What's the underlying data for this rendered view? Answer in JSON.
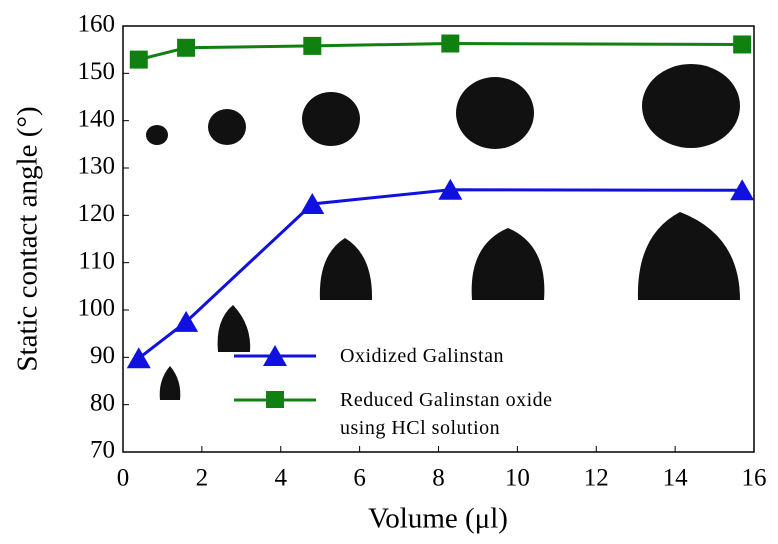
{
  "chart_data": {
    "type": "line",
    "x_label": "Volume (μl)",
    "y_label": "Static contact angle (°)",
    "xlim": [
      0,
      16
    ],
    "xticks": [
      0,
      2,
      4,
      6,
      8,
      10,
      12,
      14,
      16
    ],
    "ylim": [
      70,
      160
    ],
    "yticks": [
      70,
      80,
      90,
      100,
      110,
      120,
      130,
      140,
      150,
      160
    ],
    "series": [
      {
        "name": "Oxidized Galinstan",
        "color": "#1010e0",
        "marker": "triangle",
        "x": [
          0.4,
          1.6,
          4.8,
          8.3,
          15.7
        ],
        "values": [
          89.8,
          97.5,
          122.4,
          125.4,
          125.3
        ]
      },
      {
        "name": "Reduced Galinstan oxide using HCl solution",
        "color": "#108010",
        "marker": "square",
        "x": [
          0.4,
          1.6,
          4.8,
          8.3,
          15.7
        ],
        "values": [
          152.9,
          155.4,
          155.8,
          156.3,
          156.1
        ]
      }
    ]
  }
}
